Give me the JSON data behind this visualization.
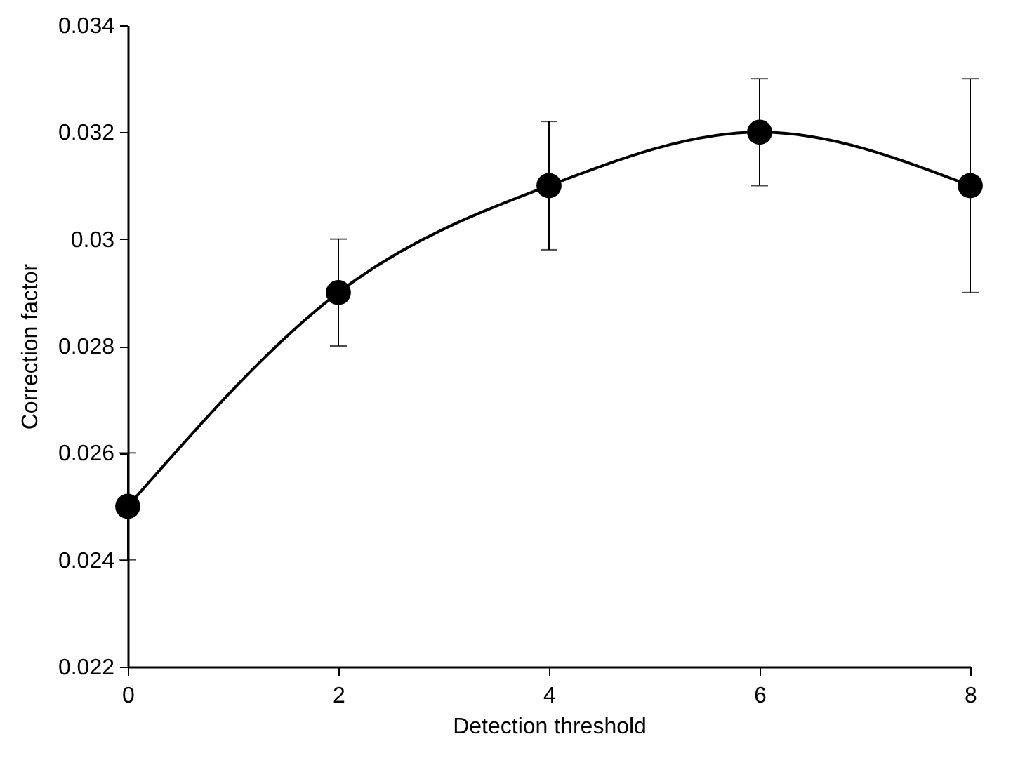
{
  "chart_data": {
    "type": "line",
    "xlabel": "Detection threshold",
    "ylabel": "Correction factor",
    "x": [
      0,
      2,
      4,
      6,
      8
    ],
    "series": [
      {
        "color": "#000000",
        "values": [
          0.025,
          0.029,
          0.031,
          0.032,
          0.031
        ],
        "errors": [
          0.001,
          0.001,
          [
            0.0298,
            0.0322
          ],
          0.001,
          [
            0.029,
            0.033
          ]
        ]
      }
    ],
    "xlim": [
      0,
      8
    ],
    "xticks": [
      0,
      2,
      4,
      6,
      8
    ],
    "ylim": [
      0.022,
      0.034
    ],
    "yticks": [
      0.022,
      0.024,
      0.026,
      0.028,
      0.03,
      0.032,
      0.034
    ],
    "grid": false,
    "marker": "circle",
    "line_style": "solid"
  }
}
